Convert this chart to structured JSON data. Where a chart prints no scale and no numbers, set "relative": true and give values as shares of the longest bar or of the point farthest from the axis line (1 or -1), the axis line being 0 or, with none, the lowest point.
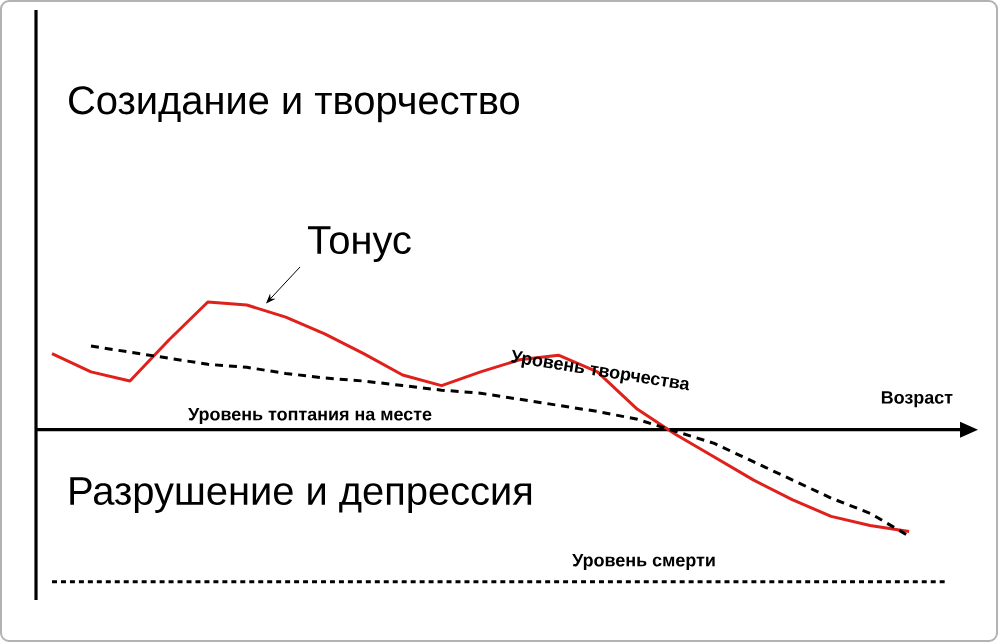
{
  "chart_data": {
    "type": "line",
    "relative": true,
    "xlabel": "Возраст",
    "legend": false,
    "marker": "none",
    "annotations": [
      "Созидание и творчество",
      "Разрушение и депрессия",
      "Уровень топтания на месте"
    ],
    "categories": [
      null,
      null,
      null,
      null,
      null,
      null,
      null,
      null,
      null,
      null,
      null,
      null,
      null,
      null,
      null,
      null,
      null,
      null,
      null,
      null,
      null,
      null,
      null,
      null
    ],
    "series": [
      {
        "name": "Тонус",
        "color": "#e0201b",
        "line_style": "solid",
        "values": [
          0.5,
          0.38,
          0.32,
          0.59,
          0.84,
          0.82,
          0.74,
          0.63,
          0.5,
          0.36,
          0.29,
          0.38,
          0.46,
          0.49,
          0.38,
          0.14,
          -0.03,
          -0.18,
          -0.33,
          -0.46,
          -0.57,
          -0.63,
          -0.67,
          null
        ]
      },
      {
        "name": "Уровень творчества",
        "color": "#000000",
        "line_style": "dashed",
        "values": [
          null,
          0.55,
          0.51,
          0.47,
          0.43,
          0.41,
          0.37,
          0.34,
          0.32,
          0.29,
          0.26,
          0.24,
          0.2,
          0.16,
          0.12,
          0.07,
          -0.01,
          -0.09,
          -0.21,
          -0.33,
          -0.45,
          -0.55,
          -0.7,
          null
        ]
      },
      {
        "name": "Уровень смерти",
        "color": "#000000",
        "line_style": "dotted",
        "values": [
          -1,
          -1,
          -1,
          -1,
          -1,
          -1,
          -1,
          -1,
          -1,
          -1,
          -1,
          -1,
          -1,
          -1,
          -1,
          -1,
          -1,
          -1,
          -1,
          -1,
          -1,
          -1,
          -1,
          -1
        ]
      }
    ]
  }
}
